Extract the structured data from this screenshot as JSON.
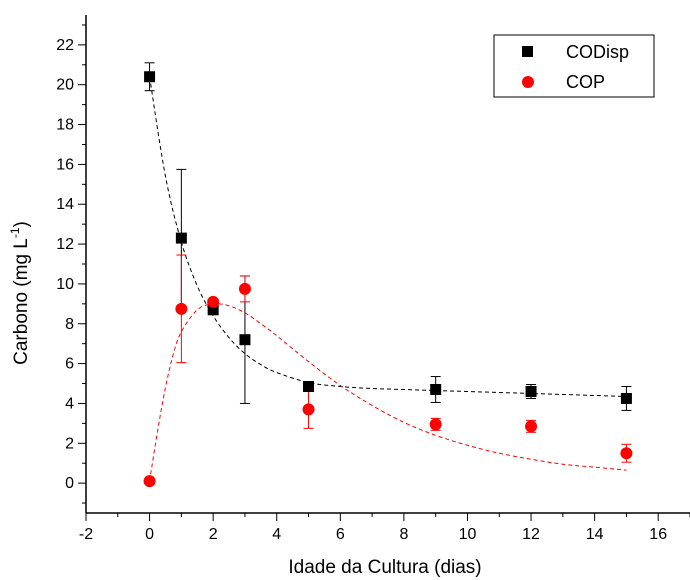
{
  "chart_data": {
    "type": "scatter",
    "xlabel": "Idade da Cultura (dias)",
    "ylabel_main": "Carbono (mg L",
    "ylabel_sup": "-1",
    "ylabel_close": ")",
    "xlim": [
      -2,
      17
    ],
    "ylim": [
      -1.5,
      23.5
    ],
    "xticks": [
      -2,
      0,
      2,
      4,
      6,
      8,
      10,
      12,
      14,
      16
    ],
    "yticks": [
      0,
      2,
      4,
      6,
      8,
      10,
      12,
      14,
      16,
      18,
      20,
      22
    ],
    "legend_position": "top-right",
    "series": [
      {
        "name": "CODisp",
        "marker": "square",
        "color": "#000000",
        "x": [
          0,
          1,
          2,
          3,
          5,
          9,
          12,
          15
        ],
        "y": [
          20.4,
          12.3,
          8.7,
          7.2,
          4.85,
          4.7,
          4.6,
          4.25
        ],
        "err": [
          0.7,
          3.45,
          0.2,
          3.2,
          0.2,
          0.65,
          0.35,
          0.6
        ],
        "fit": {
          "x": [
            0,
            0.5,
            1,
            1.5,
            2,
            2.5,
            3,
            3.5,
            4,
            5,
            6,
            7,
            8,
            9,
            10,
            11,
            12,
            13,
            14,
            15
          ],
          "y": [
            20.4,
            15.4,
            12.1,
            9.9,
            8.4,
            7.3,
            6.5,
            5.95,
            5.55,
            5.05,
            4.85,
            4.75,
            4.7,
            4.65,
            4.6,
            4.55,
            4.5,
            4.45,
            4.4,
            4.35
          ]
        }
      },
      {
        "name": "COP",
        "marker": "circle",
        "color": "#ff0000",
        "x": [
          0,
          1,
          2,
          3,
          5,
          9,
          12,
          15
        ],
        "y": [
          0.1,
          8.75,
          9.1,
          9.75,
          3.7,
          2.95,
          2.85,
          1.5
        ],
        "err": [
          0,
          2.7,
          0,
          0.65,
          0.95,
          0.3,
          0.3,
          0.45
        ],
        "fit": {
          "x": [
            0,
            0.25,
            0.5,
            0.75,
            1,
            1.5,
            2,
            2.5,
            3,
            3.5,
            4,
            5,
            6,
            7,
            8,
            9,
            10,
            11,
            12,
            13,
            14,
            15
          ],
          "y": [
            0.1,
            2.6,
            4.8,
            6.5,
            7.6,
            8.7,
            9.0,
            8.9,
            8.55,
            8.0,
            7.4,
            6.1,
            4.9,
            3.9,
            3.05,
            2.4,
            1.9,
            1.5,
            1.2,
            0.95,
            0.8,
            0.65
          ]
        }
      }
    ]
  }
}
